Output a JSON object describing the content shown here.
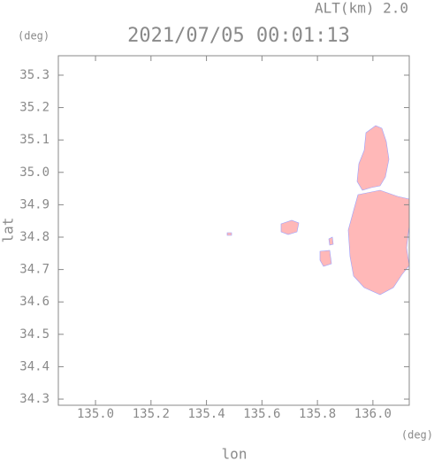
{
  "chart_data": {
    "type": "map",
    "annotation": "ALT(km) 2.0",
    "title": "2021/07/05 00:01:13",
    "y_unit": "(deg)",
    "x_unit": "(deg)",
    "xlabel": "lon",
    "ylabel": "lat",
    "xlim": [
      134.866,
      136.131
    ],
    "ylim": [
      34.281,
      35.36
    ],
    "xticks": [
      {
        "value": 135,
        "label": "135.0"
      },
      135.2,
      135.4,
      135.6,
      135.8,
      {
        "value": 136,
        "label": "136.0"
      }
    ],
    "yticks": [
      34.3,
      34.4,
      34.5,
      34.6,
      34.7,
      34.8,
      34.9,
      {
        "value": 35,
        "label": "35.0"
      },
      35.1,
      35.2,
      35.3
    ],
    "color": "#ffb8b8"
  }
}
